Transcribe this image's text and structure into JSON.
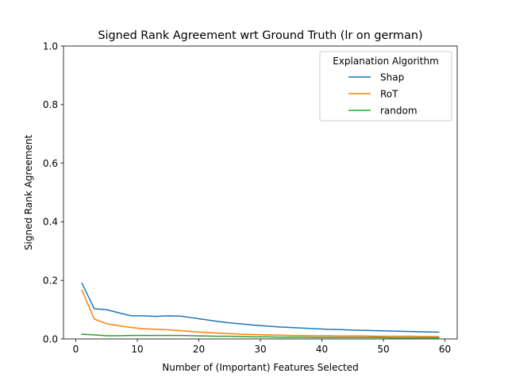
{
  "chart_data": {
    "type": "line",
    "title": "Signed Rank Agreement wrt Ground Truth (lr on german)",
    "xlabel": "Number of (Important) Features Selected",
    "ylabel": "Signed Rank Agreement",
    "xlim": [
      -2,
      62
    ],
    "ylim": [
      0,
      1.0
    ],
    "xticks": [
      0,
      10,
      20,
      30,
      40,
      50,
      60
    ],
    "yticks": [
      0.0,
      0.2,
      0.4,
      0.6,
      0.8,
      1.0
    ],
    "xtick_labels": [
      "0",
      "10",
      "20",
      "30",
      "40",
      "50",
      "60"
    ],
    "ytick_labels": [
      "0.0",
      "0.2",
      "0.4",
      "0.6",
      "0.8",
      "1.0"
    ],
    "grid": false,
    "legend": {
      "title": "Explanation Algorithm",
      "placement": "top-right"
    },
    "x": [
      1,
      3,
      5,
      7,
      9,
      11,
      13,
      15,
      17,
      19,
      21,
      23,
      25,
      27,
      29,
      31,
      33,
      35,
      37,
      39,
      41,
      43,
      45,
      47,
      49,
      51,
      53,
      55,
      57,
      59
    ],
    "series": [
      {
        "name": "Shap",
        "color": "#1f77b4",
        "values": [
          0.19,
          0.103,
          0.1,
          0.089,
          0.079,
          0.079,
          0.077,
          0.079,
          0.078,
          0.072,
          0.066,
          0.06,
          0.055,
          0.051,
          0.047,
          0.044,
          0.041,
          0.039,
          0.037,
          0.035,
          0.033,
          0.032,
          0.03,
          0.029,
          0.028,
          0.027,
          0.026,
          0.025,
          0.024,
          0.023
        ]
      },
      {
        "name": "RoT",
        "color": "#ff7f0e",
        "values": [
          0.166,
          0.068,
          0.052,
          0.045,
          0.039,
          0.035,
          0.033,
          0.031,
          0.028,
          0.025,
          0.022,
          0.02,
          0.018,
          0.016,
          0.015,
          0.014,
          0.013,
          0.012,
          0.012,
          0.011,
          0.011,
          0.01,
          0.01,
          0.01,
          0.009,
          0.009,
          0.009,
          0.009,
          0.008,
          0.008
        ]
      },
      {
        "name": "random",
        "color": "#2ca02c",
        "values": [
          0.016,
          0.014,
          0.011,
          0.011,
          0.012,
          0.012,
          0.012,
          0.012,
          0.012,
          0.011,
          0.01,
          0.009,
          0.009,
          0.008,
          0.007,
          0.007,
          0.006,
          0.006,
          0.006,
          0.005,
          0.005,
          0.005,
          0.005,
          0.005,
          0.005,
          0.004,
          0.004,
          0.004,
          0.004,
          0.004
        ]
      }
    ]
  }
}
